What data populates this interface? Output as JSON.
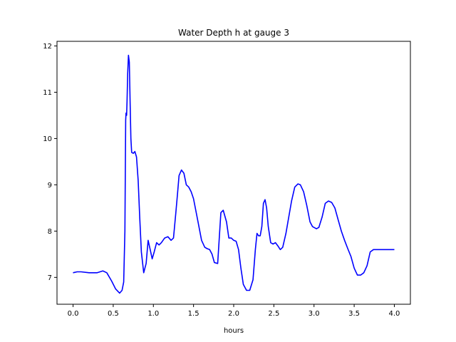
{
  "chart_data": {
    "type": "line",
    "title": "Water Depth h at gauge 3",
    "xlabel": "hours",
    "ylabel": "",
    "xlim": [
      -0.2,
      4.2
    ],
    "ylim": [
      6.42,
      12.1
    ],
    "xticks": [
      0.0,
      0.5,
      1.0,
      1.5,
      2.0,
      2.5,
      3.0,
      3.5,
      4.0
    ],
    "xtick_labels": [
      "0.0",
      "0.5",
      "1.0",
      "1.5",
      "2.0",
      "2.5",
      "3.0",
      "3.5",
      "4.0"
    ],
    "yticks": [
      7,
      8,
      9,
      10,
      11,
      12
    ],
    "ytick_labels": [
      "7",
      "8",
      "9",
      "10",
      "11",
      "12"
    ],
    "grid": false,
    "series": [
      {
        "name": "",
        "color": "#0000ff",
        "x": [
          0.0,
          0.05,
          0.1,
          0.2,
          0.3,
          0.37,
          0.42,
          0.48,
          0.53,
          0.58,
          0.61,
          0.63,
          0.645,
          0.655,
          0.66,
          0.667,
          0.672,
          0.68,
          0.69,
          0.7,
          0.71,
          0.72,
          0.73,
          0.75,
          0.77,
          0.79,
          0.81,
          0.83,
          0.85,
          0.88,
          0.91,
          0.935,
          0.96,
          0.985,
          1.01,
          1.04,
          1.07,
          1.1,
          1.14,
          1.18,
          1.22,
          1.25,
          1.28,
          1.3,
          1.32,
          1.35,
          1.38,
          1.41,
          1.44,
          1.47,
          1.5,
          1.55,
          1.6,
          1.64,
          1.67,
          1.7,
          1.73,
          1.76,
          1.8,
          1.84,
          1.87,
          1.91,
          1.94,
          1.97,
          2.0,
          2.03,
          2.06,
          2.09,
          2.12,
          2.16,
          2.2,
          2.24,
          2.27,
          2.29,
          2.31,
          2.33,
          2.35,
          2.37,
          2.39,
          2.41,
          2.43,
          2.46,
          2.49,
          2.52,
          2.55,
          2.58,
          2.61,
          2.65,
          2.69,
          2.72,
          2.76,
          2.8,
          2.83,
          2.87,
          2.91,
          2.95,
          2.98,
          3.0,
          3.03,
          3.06,
          3.1,
          3.14,
          3.18,
          3.22,
          3.26,
          3.3,
          3.34,
          3.38,
          3.42,
          3.46,
          3.5,
          3.54,
          3.58,
          3.62,
          3.66,
          3.7,
          3.74,
          3.78,
          3.82,
          3.86,
          3.9,
          3.94,
          3.97,
          4.0
        ],
        "y": [
          7.1,
          7.12,
          7.12,
          7.1,
          7.1,
          7.14,
          7.1,
          6.92,
          6.75,
          6.66,
          6.72,
          6.9,
          8.0,
          10.4,
          10.55,
          10.5,
          10.8,
          11.4,
          11.8,
          11.65,
          10.8,
          10.0,
          9.7,
          9.68,
          9.72,
          9.6,
          9.1,
          8.3,
          7.55,
          7.1,
          7.3,
          7.8,
          7.6,
          7.4,
          7.55,
          7.75,
          7.7,
          7.75,
          7.85,
          7.88,
          7.8,
          7.85,
          8.4,
          8.8,
          9.2,
          9.32,
          9.25,
          9.0,
          8.95,
          8.85,
          8.7,
          8.25,
          7.8,
          7.65,
          7.62,
          7.6,
          7.5,
          7.32,
          7.3,
          8.4,
          8.45,
          8.2,
          7.85,
          7.85,
          7.8,
          7.78,
          7.6,
          7.2,
          6.85,
          6.72,
          6.72,
          6.95,
          7.6,
          7.95,
          7.9,
          7.9,
          8.1,
          8.6,
          8.68,
          8.5,
          8.1,
          7.75,
          7.72,
          7.75,
          7.68,
          7.6,
          7.65,
          7.95,
          8.35,
          8.65,
          8.95,
          9.02,
          9.0,
          8.85,
          8.55,
          8.2,
          8.1,
          8.08,
          8.05,
          8.08,
          8.3,
          8.6,
          8.65,
          8.62,
          8.5,
          8.25,
          8.0,
          7.8,
          7.62,
          7.45,
          7.2,
          7.05,
          7.05,
          7.1,
          7.25,
          7.55,
          7.6,
          7.6,
          7.6,
          7.6,
          7.6,
          7.6,
          7.6,
          7.6
        ],
        "x_note_removed": true
      }
    ]
  }
}
